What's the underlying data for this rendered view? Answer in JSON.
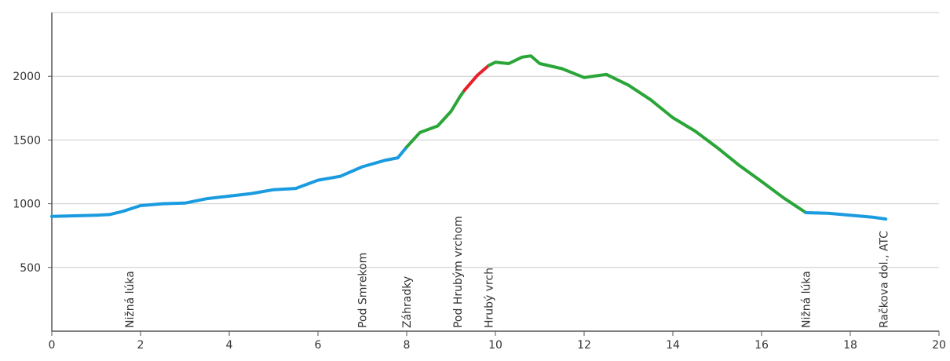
{
  "chart_data": {
    "type": "line",
    "title": "",
    "xlabel": "",
    "ylabel": "",
    "xlim": [
      0,
      20
    ],
    "ylim": [
      0,
      2500
    ],
    "x_ticks": [
      0,
      2,
      4,
      6,
      8,
      10,
      12,
      14,
      16,
      18,
      20
    ],
    "y_ticks": [
      500,
      1000,
      1500,
      2000
    ],
    "grid": "horizontal",
    "colors": {
      "blue": "#1a9be0",
      "green": "#2aa537",
      "red": "#e8202a",
      "axis": "#555555",
      "grid": "#cccccc"
    },
    "series": [
      {
        "color": "#1a9be0",
        "points": [
          [
            0,
            900
          ],
          [
            0.5,
            905
          ],
          [
            1.0,
            910
          ],
          [
            1.3,
            915
          ],
          [
            1.6,
            940
          ],
          [
            2.0,
            985
          ],
          [
            2.5,
            1000
          ],
          [
            3.0,
            1005
          ],
          [
            3.5,
            1040
          ],
          [
            4.0,
            1060
          ],
          [
            4.5,
            1080
          ],
          [
            5.0,
            1110
          ],
          [
            5.5,
            1120
          ],
          [
            6.0,
            1185
          ],
          [
            6.5,
            1215
          ],
          [
            7.0,
            1290
          ],
          [
            7.5,
            1340
          ],
          [
            7.8,
            1360
          ],
          [
            8.0,
            1445
          ]
        ]
      },
      {
        "color": "#2aa537",
        "points": [
          [
            8.0,
            1445
          ],
          [
            8.3,
            1560
          ],
          [
            8.7,
            1610
          ],
          [
            9.0,
            1725
          ],
          [
            9.2,
            1840
          ],
          [
            9.3,
            1890
          ]
        ]
      },
      {
        "color": "#e8202a",
        "points": [
          [
            9.3,
            1890
          ],
          [
            9.6,
            2010
          ],
          [
            9.85,
            2085
          ]
        ]
      },
      {
        "color": "#2aa537",
        "points": [
          [
            9.85,
            2085
          ],
          [
            10.0,
            2110
          ],
          [
            10.3,
            2100
          ],
          [
            10.6,
            2150
          ],
          [
            10.8,
            2160
          ],
          [
            11.0,
            2100
          ],
          [
            11.5,
            2060
          ],
          [
            12.0,
            1990
          ],
          [
            12.5,
            2015
          ],
          [
            13.0,
            1930
          ],
          [
            13.5,
            1815
          ],
          [
            14.0,
            1675
          ],
          [
            14.5,
            1570
          ],
          [
            15.0,
            1440
          ],
          [
            15.5,
            1300
          ],
          [
            16.0,
            1175
          ],
          [
            16.5,
            1045
          ],
          [
            17.0,
            930
          ]
        ]
      },
      {
        "color": "#1a9be0",
        "points": [
          [
            17.0,
            930
          ],
          [
            17.5,
            925
          ],
          [
            18.0,
            910
          ],
          [
            18.5,
            895
          ],
          [
            18.8,
            880
          ]
        ]
      }
    ],
    "waypoints": [
      {
        "x": 1.75,
        "label": "Nižná lúka"
      },
      {
        "x": 7.0,
        "label": "Pod Smrekom"
      },
      {
        "x": 8.0,
        "label": "Záhradky"
      },
      {
        "x": 9.15,
        "label": "Pod Hrubým vrchom"
      },
      {
        "x": 9.85,
        "label": "Hrubý vrch"
      },
      {
        "x": 17.0,
        "label": "Nižná lúka"
      },
      {
        "x": 18.75,
        "label": "Račkova dol., ATC"
      }
    ]
  }
}
